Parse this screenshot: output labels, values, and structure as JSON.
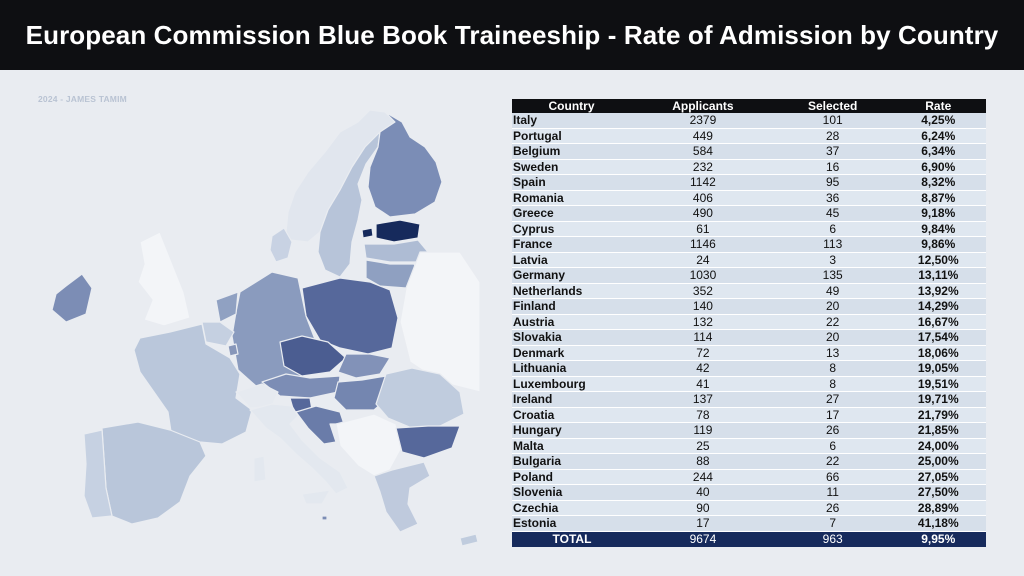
{
  "header": {
    "title": "European Commission Blue Book Traineeship - Rate of Admission by Country"
  },
  "credit": "2024 - JAMES TAMIM",
  "colors": {
    "low": "#c6d1e2",
    "mid": "#8899bc",
    "high": "#57699a",
    "top": "#162a5c",
    "non_eu": "#f3f5f8"
  },
  "table": {
    "columns": [
      "Country",
      "Applicants",
      "Selected",
      "Rate"
    ],
    "rows": [
      {
        "country": "Italy",
        "applicants": "2379",
        "selected": "101",
        "rate": "4,25%"
      },
      {
        "country": "Portugal",
        "applicants": "449",
        "selected": "28",
        "rate": "6,24%"
      },
      {
        "country": "Belgium",
        "applicants": "584",
        "selected": "37",
        "rate": "6,34%"
      },
      {
        "country": "Sweden",
        "applicants": "232",
        "selected": "16",
        "rate": "6,90%"
      },
      {
        "country": "Spain",
        "applicants": "1142",
        "selected": "95",
        "rate": "8,32%"
      },
      {
        "country": "Romania",
        "applicants": "406",
        "selected": "36",
        "rate": "8,87%"
      },
      {
        "country": "Greece",
        "applicants": "490",
        "selected": "45",
        "rate": "9,18%"
      },
      {
        "country": "Cyprus",
        "applicants": "61",
        "selected": "6",
        "rate": "9,84%"
      },
      {
        "country": "France",
        "applicants": "1146",
        "selected": "113",
        "rate": "9,86%"
      },
      {
        "country": "Latvia",
        "applicants": "24",
        "selected": "3",
        "rate": "12,50%"
      },
      {
        "country": "Germany",
        "applicants": "1030",
        "selected": "135",
        "rate": "13,11%"
      },
      {
        "country": "Netherlands",
        "applicants": "352",
        "selected": "49",
        "rate": "13,92%"
      },
      {
        "country": "Finland",
        "applicants": "140",
        "selected": "20",
        "rate": "14,29%"
      },
      {
        "country": "Austria",
        "applicants": "132",
        "selected": "22",
        "rate": "16,67%"
      },
      {
        "country": "Slovakia",
        "applicants": "114",
        "selected": "20",
        "rate": "17,54%"
      },
      {
        "country": "Denmark",
        "applicants": "72",
        "selected": "13",
        "rate": "18,06%"
      },
      {
        "country": "Lithuania",
        "applicants": "42",
        "selected": "8",
        "rate": "19,05%"
      },
      {
        "country": "Luxembourg",
        "applicants": "41",
        "selected": "8",
        "rate": "19,51%"
      },
      {
        "country": "Ireland",
        "applicants": "137",
        "selected": "27",
        "rate": "19,71%"
      },
      {
        "country": "Croatia",
        "applicants": "78",
        "selected": "17",
        "rate": "21,79%"
      },
      {
        "country": "Hungary",
        "applicants": "119",
        "selected": "26",
        "rate": "21,85%"
      },
      {
        "country": "Malta",
        "applicants": "25",
        "selected": "6",
        "rate": "24,00%"
      },
      {
        "country": "Bulgaria",
        "applicants": "88",
        "selected": "22",
        "rate": "25,00%"
      },
      {
        "country": "Poland",
        "applicants": "244",
        "selected": "66",
        "rate": "27,05%"
      },
      {
        "country": "Slovenia",
        "applicants": "40",
        "selected": "11",
        "rate": "27,50%"
      },
      {
        "country": "Czechia",
        "applicants": "90",
        "selected": "26",
        "rate": "28,89%"
      },
      {
        "country": "Estonia",
        "applicants": "17",
        "selected": "7",
        "rate": "41,18%"
      }
    ],
    "total": {
      "country": "TOTAL",
      "applicants": "9674",
      "selected": "963",
      "rate": "9,95%"
    }
  }
}
